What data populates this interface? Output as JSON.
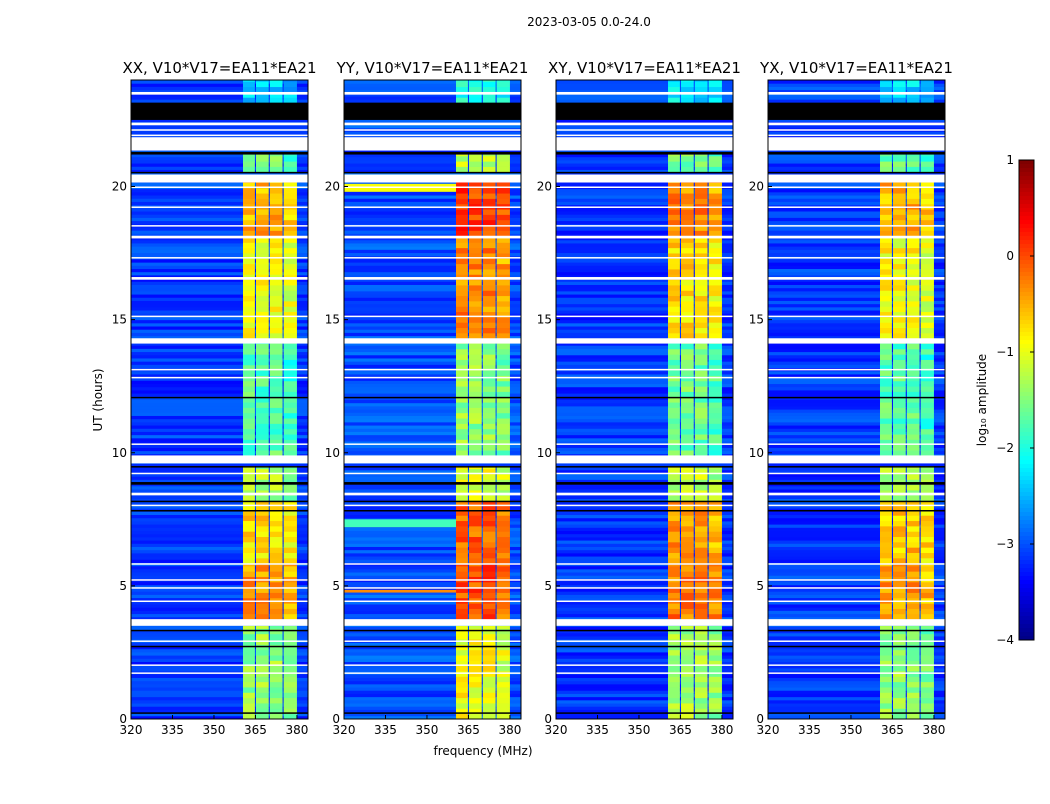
{
  "figure_title": "2023-03-05 0.0-24.0",
  "xlabel": "frequency (MHz)",
  "ylabel": "UT (hours)",
  "colorbar": {
    "label": "log₁₀ amplitude",
    "range": [
      -4,
      1
    ],
    "ticks": [
      "1",
      "0",
      "−1",
      "−2",
      "−3",
      "−4"
    ],
    "tick_values": [
      1,
      0,
      -1,
      -2,
      -3,
      -4
    ],
    "colormap": "jet"
  },
  "flags": [
    {
      "t": [
        23.45,
        23.55
      ],
      "kind": "white"
    },
    {
      "t": [
        22.5,
        23.15
      ],
      "kind": "black"
    },
    {
      "t": [
        22.3,
        22.4
      ],
      "kind": "white"
    },
    {
      "t": [
        22.1,
        22.15
      ],
      "kind": "white"
    },
    {
      "t": [
        21.9,
        21.95
      ],
      "kind": "white"
    },
    {
      "t": [
        21.35,
        21.85
      ],
      "kind": "white"
    },
    {
      "t": [
        21.2,
        21.3
      ],
      "kind": "black"
    },
    {
      "t": [
        20.15,
        20.45
      ],
      "kind": "white"
    },
    {
      "t": [
        20.5,
        20.55
      ],
      "kind": "black"
    },
    {
      "t": [
        19.95,
        20.0
      ],
      "kind": "white"
    },
    {
      "t": [
        19.2,
        19.25
      ],
      "kind": "white"
    },
    {
      "t": [
        18.5,
        18.55
      ],
      "kind": "white"
    },
    {
      "t": [
        18.05,
        18.15
      ],
      "kind": "white"
    },
    {
      "t": [
        17.3,
        17.35
      ],
      "kind": "white"
    },
    {
      "t": [
        16.5,
        16.6
      ],
      "kind": "white"
    },
    {
      "t": [
        15.1,
        15.15
      ],
      "kind": "white"
    },
    {
      "t": [
        14.1,
        14.3
      ],
      "kind": "white"
    },
    {
      "t": [
        13.1,
        13.15
      ],
      "kind": "white"
    },
    {
      "t": [
        12.8,
        12.85
      ],
      "kind": "white"
    },
    {
      "t": [
        12.05,
        12.1
      ],
      "kind": "black"
    },
    {
      "t": [
        10.3,
        10.35
      ],
      "kind": "white"
    },
    {
      "t": [
        9.6,
        9.9
      ],
      "kind": "white"
    },
    {
      "t": [
        9.45,
        9.5
      ],
      "kind": "black"
    },
    {
      "t": [
        9.2,
        9.25
      ],
      "kind": "white"
    },
    {
      "t": [
        8.8,
        8.9
      ],
      "kind": "black"
    },
    {
      "t": [
        8.4,
        8.5
      ],
      "kind": "white"
    },
    {
      "t": [
        8.15,
        8.2
      ],
      "kind": "black"
    },
    {
      "t": [
        8.0,
        8.05
      ],
      "kind": "white"
    },
    {
      "t": [
        7.8,
        7.85
      ],
      "kind": "black"
    },
    {
      "t": [
        5.8,
        5.85
      ],
      "kind": "white"
    },
    {
      "t": [
        5.2,
        5.25
      ],
      "kind": "white"
    },
    {
      "t": [
        4.9,
        4.95
      ],
      "kind": "white"
    },
    {
      "t": [
        4.4,
        4.45
      ],
      "kind": "white"
    },
    {
      "t": [
        3.5,
        3.75
      ],
      "kind": "white"
    },
    {
      "t": [
        3.3,
        3.35
      ],
      "kind": "black"
    },
    {
      "t": [
        2.9,
        2.95
      ],
      "kind": "white"
    },
    {
      "t": [
        2.7,
        2.75
      ],
      "kind": "black"
    },
    {
      "t": [
        2.0,
        2.05
      ],
      "kind": "white"
    },
    {
      "t": [
        1.7,
        1.75
      ],
      "kind": "white"
    },
    {
      "t": [
        0.2,
        0.25
      ],
      "kind": "black"
    }
  ],
  "chart_data": [
    {
      "type": "heatmap",
      "title": "XX, V10*V17=EA11*EA21",
      "xlim": [
        320,
        384
      ],
      "ylim": [
        0,
        24
      ],
      "xticks": [
        "320",
        "335",
        "350",
        "365",
        "380"
      ],
      "xtick_values": [
        320,
        335,
        350,
        365,
        380
      ],
      "yticks": [
        "0",
        "5",
        "10",
        "15",
        "20"
      ],
      "ytick_values": [
        0,
        5,
        10,
        15,
        20
      ],
      "background_level": -3.1,
      "bands": [
        [
          360.5,
          364.8
        ],
        [
          365.2,
          369.8
        ],
        [
          370.2,
          374.8
        ],
        [
          375.2,
          380
        ]
      ],
      "segments": [
        {
          "t": [
            0,
            3.5
          ],
          "level": -1.4
        },
        {
          "t": [
            3.75,
            5.8
          ],
          "level": -0.4
        },
        {
          "t": [
            5.85,
            8.2
          ],
          "level": -0.7
        },
        {
          "t": [
            8.2,
            9.5
          ],
          "level": -1.3
        },
        {
          "t": [
            9.9,
            14.1
          ],
          "level": -1.7
        },
        {
          "t": [
            14.3,
            18.1
          ],
          "level": -0.9
        },
        {
          "t": [
            18.15,
            20.15
          ],
          "level": -0.5
        },
        {
          "t": [
            20.55,
            21.2
          ],
          "level": -1.6
        },
        {
          "t": [
            23.15,
            24
          ],
          "level": -2.3
        }
      ],
      "streaks": []
    },
    {
      "type": "heatmap",
      "title": "YY, V10*V17=EA11*EA21",
      "xlim": [
        320,
        384
      ],
      "ylim": [
        0,
        24
      ],
      "xticks": [
        "320",
        "335",
        "350",
        "365",
        "380"
      ],
      "xtick_values": [
        320,
        335,
        350,
        365,
        380
      ],
      "yticks": [
        "0",
        "5",
        "10",
        "15",
        "20"
      ],
      "ytick_values": [
        0,
        5,
        10,
        15,
        20
      ],
      "background_level": -3.0,
      "bands": [
        [
          360.5,
          364.8
        ],
        [
          365.2,
          369.8
        ],
        [
          370.2,
          374.8
        ],
        [
          375.2,
          380
        ]
      ],
      "segments": [
        {
          "t": [
            0,
            3.5
          ],
          "level": -0.9
        },
        {
          "t": [
            3.75,
            5.8
          ],
          "level": 0.0
        },
        {
          "t": [
            5.85,
            8.2
          ],
          "level": -0.1
        },
        {
          "t": [
            8.2,
            9.5
          ],
          "level": -1.0
        },
        {
          "t": [
            9.9,
            14.1
          ],
          "level": -1.4
        },
        {
          "t": [
            14.3,
            18.1
          ],
          "level": -0.3
        },
        {
          "t": [
            18.15,
            20.15
          ],
          "level": 0.1
        },
        {
          "t": [
            20.55,
            21.2
          ],
          "level": -1.2
        },
        {
          "t": [
            23.15,
            24
          ],
          "level": -2.0
        }
      ],
      "streaks": [
        {
          "t": [
            19.8,
            20.1
          ],
          "level": -0.9
        },
        {
          "t": [
            4.75,
            4.85
          ],
          "level": -0.3
        },
        {
          "t": [
            7.2,
            7.5
          ],
          "level": -1.8
        }
      ]
    },
    {
      "type": "heatmap",
      "title": "XY, V10*V17=EA11*EA21",
      "xlim": [
        320,
        384
      ],
      "ylim": [
        0,
        24
      ],
      "xticks": [
        "320",
        "335",
        "350",
        "365",
        "380"
      ],
      "xtick_values": [
        320,
        335,
        350,
        365,
        380
      ],
      "yticks": [
        "0",
        "5",
        "10",
        "15",
        "20"
      ],
      "ytick_values": [
        0,
        5,
        10,
        15,
        20
      ],
      "background_level": -3.1,
      "bands": [
        [
          360.5,
          364.8
        ],
        [
          365.2,
          369.8
        ],
        [
          370.2,
          374.8
        ],
        [
          375.2,
          380
        ]
      ],
      "segments": [
        {
          "t": [
            0,
            3.5
          ],
          "level": -1.3
        },
        {
          "t": [
            3.75,
            5.8
          ],
          "level": -0.2
        },
        {
          "t": [
            5.85,
            8.2
          ],
          "level": -0.4
        },
        {
          "t": [
            8.2,
            9.5
          ],
          "level": -1.2
        },
        {
          "t": [
            9.9,
            14.1
          ],
          "level": -1.6
        },
        {
          "t": [
            14.3,
            18.1
          ],
          "level": -0.7
        },
        {
          "t": [
            18.15,
            20.15
          ],
          "level": -0.3
        },
        {
          "t": [
            20.55,
            21.2
          ],
          "level": -1.5
        },
        {
          "t": [
            23.15,
            24
          ],
          "level": -2.2
        }
      ],
      "streaks": []
    },
    {
      "type": "heatmap",
      "title": "YX, V10*V17=EA11*EA21",
      "xlim": [
        320,
        384
      ],
      "ylim": [
        0,
        24
      ],
      "xticks": [
        "320",
        "335",
        "350",
        "365",
        "380"
      ],
      "xtick_values": [
        320,
        335,
        350,
        365,
        380
      ],
      "yticks": [
        "0",
        "5",
        "10",
        "15",
        "20"
      ],
      "ytick_values": [
        0,
        5,
        10,
        15,
        20
      ],
      "background_level": -3.1,
      "bands": [
        [
          360.5,
          364.8
        ],
        [
          365.2,
          369.8
        ],
        [
          370.2,
          374.8
        ],
        [
          375.2,
          380
        ]
      ],
      "segments": [
        {
          "t": [
            0,
            3.5
          ],
          "level": -1.4
        },
        {
          "t": [
            3.75,
            5.8
          ],
          "level": -0.4
        },
        {
          "t": [
            5.85,
            8.2
          ],
          "level": -0.6
        },
        {
          "t": [
            8.2,
            9.5
          ],
          "level": -1.3
        },
        {
          "t": [
            9.9,
            14.1
          ],
          "level": -1.7
        },
        {
          "t": [
            14.3,
            18.1
          ],
          "level": -0.9
        },
        {
          "t": [
            18.15,
            20.15
          ],
          "level": -0.5
        },
        {
          "t": [
            20.55,
            21.2
          ],
          "level": -1.6
        },
        {
          "t": [
            23.15,
            24
          ],
          "level": -2.3
        }
      ],
      "streaks": []
    }
  ]
}
